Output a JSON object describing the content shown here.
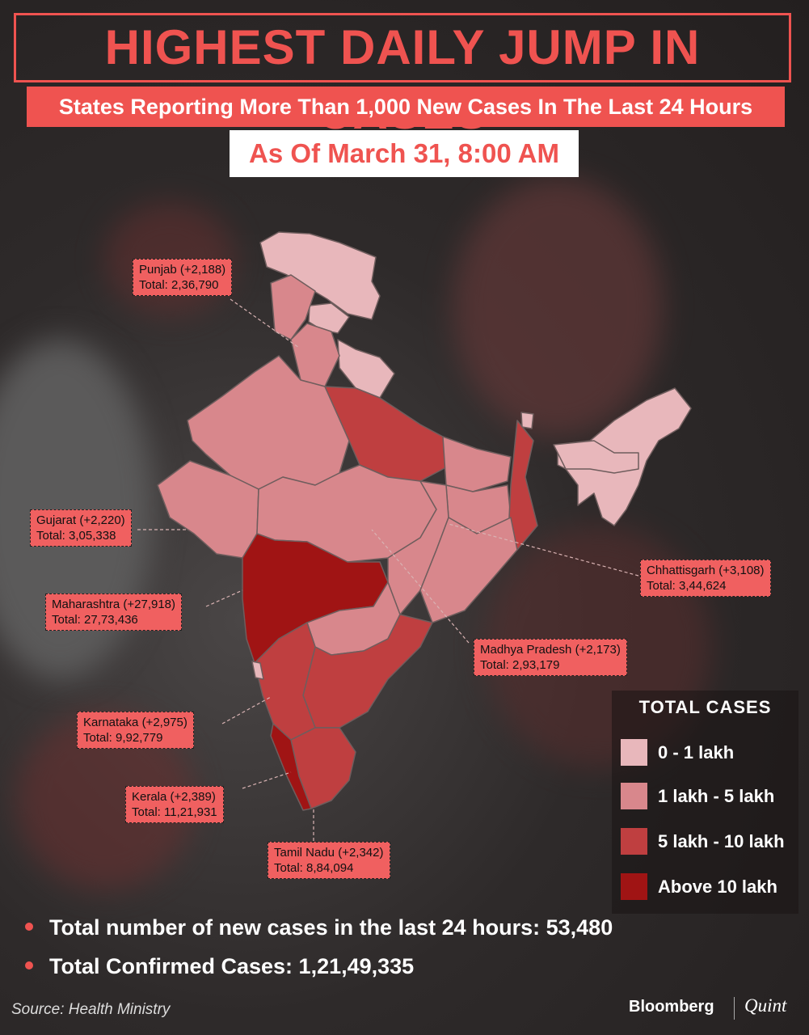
{
  "header": {
    "title": "HIGHEST DAILY JUMP IN CASES",
    "subtitle": "States Reporting More Than 1,000 New Cases In The Last 24 Hours",
    "date": "As Of March 31, 8:00 AM"
  },
  "colors": {
    "accent": "#ef5350",
    "tier_0_1_lakh": "#e8b7bb",
    "tier_1_5_lakh": "#d8878c",
    "tier_5_10_lakh": "#bf3f40",
    "tier_above_10_lakh": "#a01414"
  },
  "states": [
    {
      "name": "Punjab",
      "delta": "(+2,188)",
      "total_label": "Total:",
      "total": "2,36,790"
    },
    {
      "name": "Gujarat",
      "delta": "(+2,220)",
      "total_label": "Total:",
      "total": "3,05,338"
    },
    {
      "name": "Maharashtra",
      "delta": "(+27,918)",
      "total_label": "Total:",
      "total": "27,73,436"
    },
    {
      "name": "Karnataka",
      "delta": "(+2,975)",
      "total_label": "Total:",
      "total": "9,92,779"
    },
    {
      "name": "Kerala",
      "delta": "(+2,389)",
      "total_label": "Total:",
      "total": "11,21,931"
    },
    {
      "name": "Tamil Nadu",
      "delta": "(+2,342)",
      "total_label": "Total:",
      "total": "8,84,094"
    },
    {
      "name": "Madhya Pradesh",
      "delta": "(+2,173)",
      "total_label": "Total:",
      "total": "2,93,179"
    },
    {
      "name": "Chhattisgarh",
      "delta": "(+3,108)",
      "total_label": "Total:",
      "total": "3,44,624"
    }
  ],
  "legend": {
    "title": "TOTAL  CASES",
    "items": [
      {
        "label": "0 - 1 lakh",
        "color": "#e8b7bb"
      },
      {
        "label": "1 lakh - 5 lakh",
        "color": "#d8878c"
      },
      {
        "label": "5 lakh - 10 lakh",
        "color": "#bf3f40"
      },
      {
        "label": "Above 10 lakh",
        "color": "#a01414"
      }
    ]
  },
  "stats": [
    "Total number of new cases in the last 24 hours: 53,480",
    "Total Confirmed Cases: 1,21,49,335"
  ],
  "footer": {
    "source": "Source: Health Ministry",
    "brand_left": "Bloomberg",
    "brand_right": "Quint"
  }
}
